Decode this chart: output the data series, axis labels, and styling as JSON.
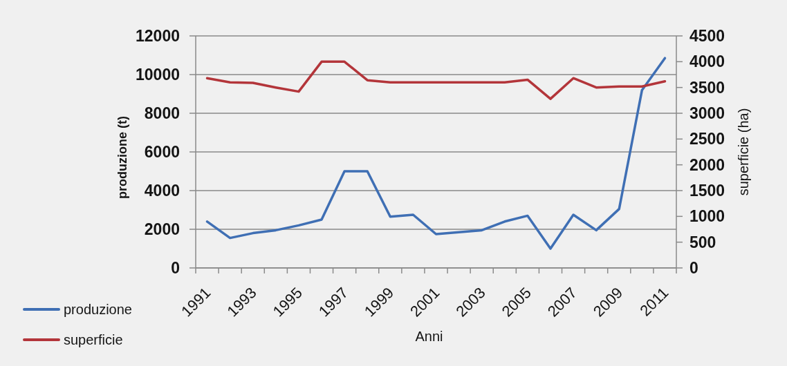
{
  "chart_data": {
    "type": "line",
    "xlabel": "Anni",
    "ylabel": "produzione (t)",
    "y2label": "superficie (ha)",
    "categories": [
      "1991",
      null,
      "1993",
      null,
      "1995",
      null,
      "1997",
      null,
      "1999",
      null,
      "2001",
      null,
      "2003",
      null,
      "2005",
      null,
      "2007",
      null,
      "2009",
      null,
      "2011"
    ],
    "series": [
      {
        "name": "produzione",
        "color": "#3f6fb4",
        "values": [
          2400,
          1550,
          1800,
          1950,
          2200,
          2500,
          5000,
          5000,
          2650,
          2750,
          1750,
          1850,
          1950,
          2400,
          2700,
          1000,
          2750,
          1950,
          3050,
          9200,
          10850
        ]
      },
      {
        "name": "superficie",
        "color": "#b3353a",
        "axis": "y2",
        "values": [
          3680,
          3600,
          3590,
          3500,
          3420,
          4000,
          4000,
          3640,
          3600,
          3600,
          3600,
          3600,
          3600,
          3600,
          3650,
          3280,
          3680,
          3500,
          3520,
          3520,
          3620
        ]
      }
    ],
    "ylim": [
      0,
      12000
    ],
    "yticks": [
      0,
      2000,
      4000,
      6000,
      8000,
      10000,
      12000
    ],
    "y2lim": [
      0,
      4500
    ],
    "y2ticks": [
      0,
      500,
      1000,
      1500,
      2000,
      2500,
      3000,
      3500,
      4000,
      4500
    ],
    "grid": "y",
    "legend": "bottom left",
    "marker": "none",
    "line_style": "solid"
  }
}
